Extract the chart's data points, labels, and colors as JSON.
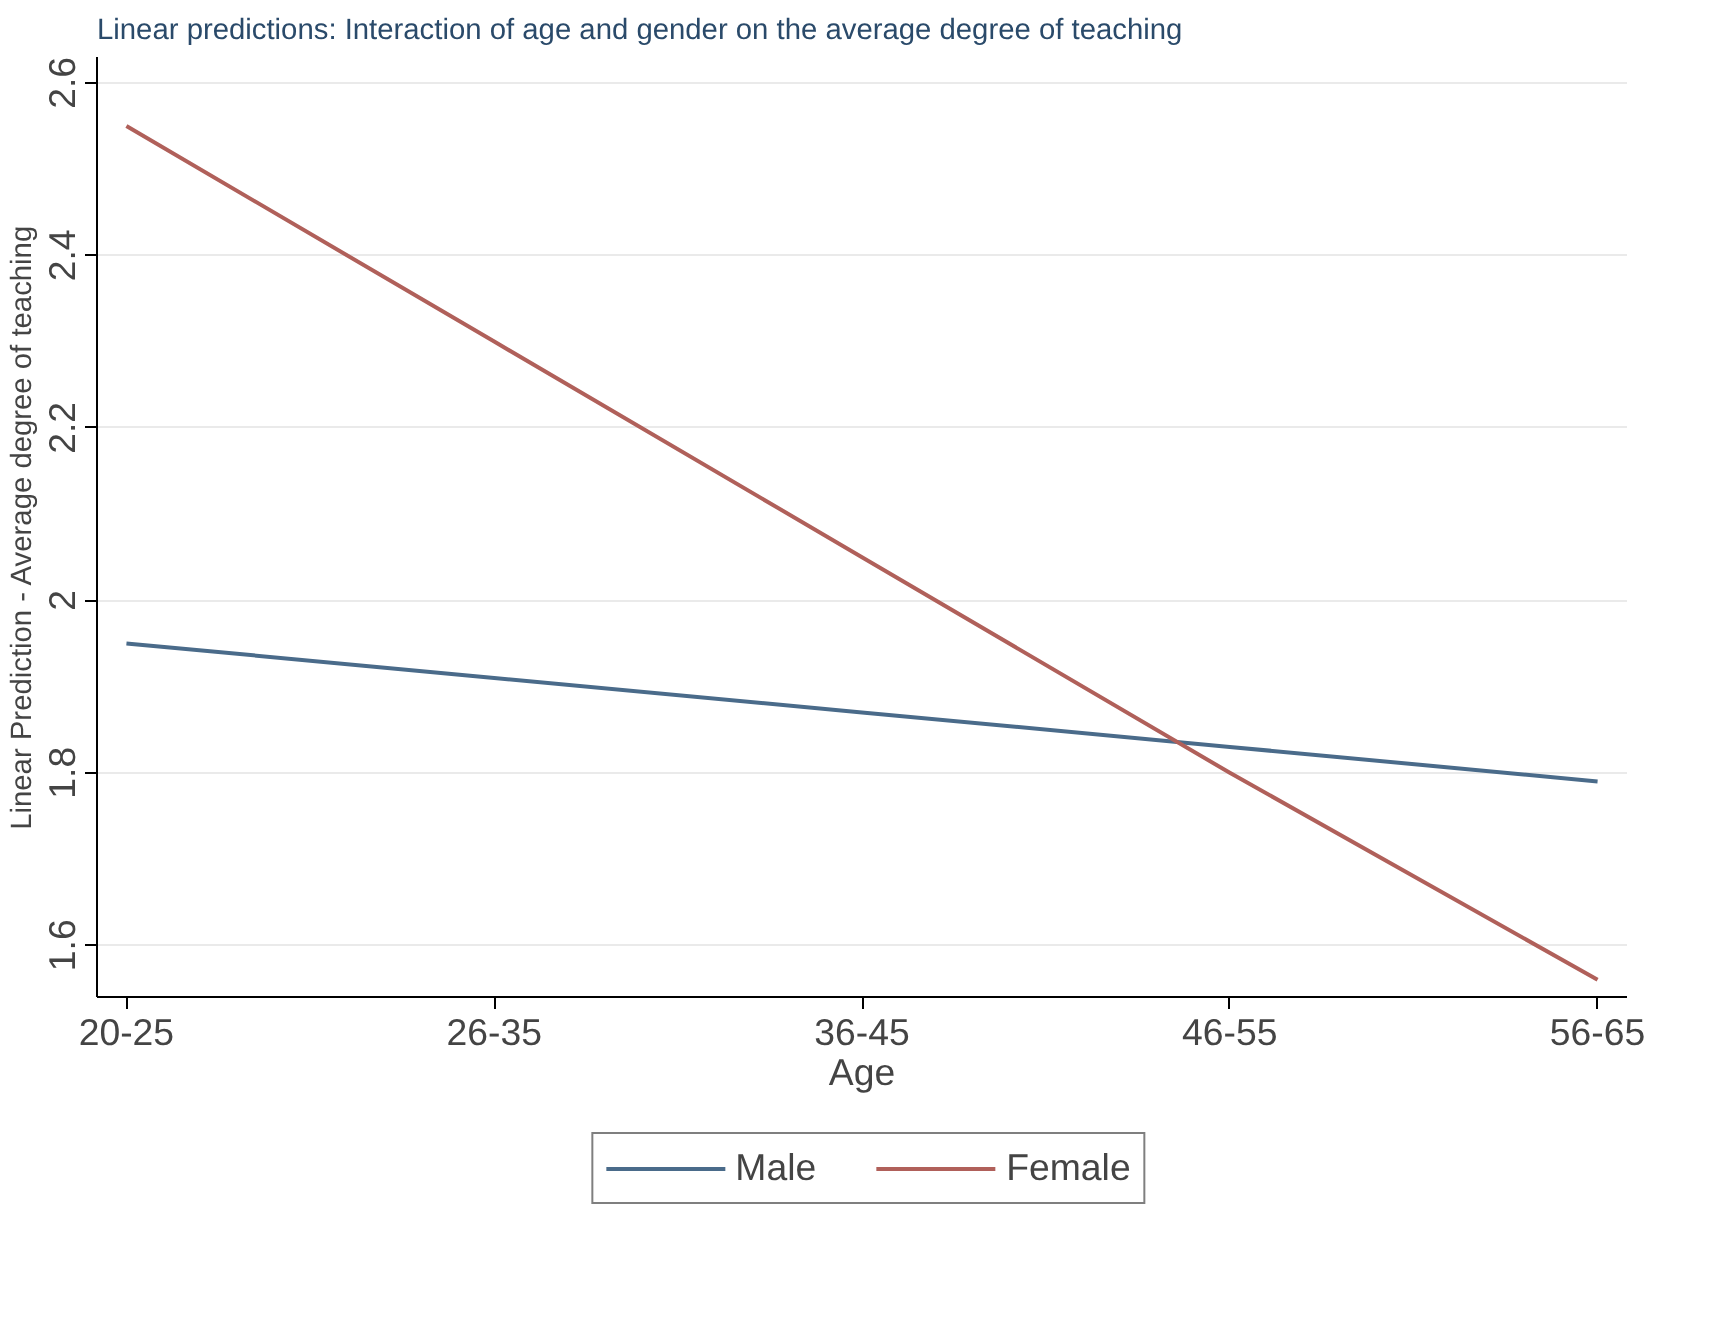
{
  "chart_data": {
    "type": "line",
    "title": "Linear predictions: Interaction of age and gender on the average degree of teaching",
    "xlabel": "Age",
    "ylabel": "Linear Prediction - Average degree of teaching",
    "categories": [
      "20-25",
      "26-35",
      "36-45",
      "46-55",
      "56-65"
    ],
    "series": [
      {
        "name": "Male",
        "color": "#4a6b8a",
        "values": [
          1.95,
          1.91,
          1.87,
          1.83,
          1.79
        ]
      },
      {
        "name": "Female",
        "color": "#b0605a",
        "values": [
          2.55,
          2.3,
          2.05,
          1.8,
          1.56
        ]
      }
    ],
    "ylim": [
      1.54,
      2.63
    ],
    "yticks": [
      1.6,
      1.8,
      2,
      2.2,
      2.4,
      2.6
    ],
    "grid": "y",
    "legend": "bottom",
    "marker": "none",
    "line_style": "solid"
  }
}
